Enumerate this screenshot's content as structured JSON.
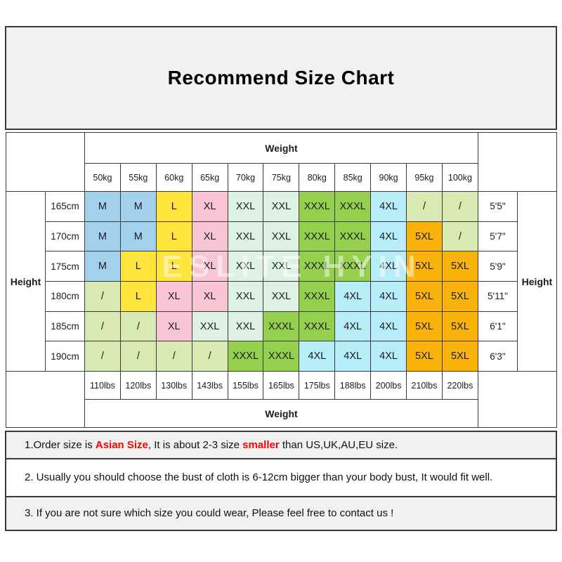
{
  "title": "Recommend Size Chart",
  "watermark": "ESLITE HYIN",
  "table": {
    "weight_label_top": "Weight",
    "weight_label_bottom": "Weight",
    "height_label_left": "Height",
    "height_label_right": "Height",
    "kg_columns": [
      "50kg",
      "55kg",
      "60kg",
      "65kg",
      "70kg",
      "75kg",
      "80kg",
      "85kg",
      "90kg",
      "95kg",
      "100kg"
    ],
    "lbs_columns": [
      "110lbs",
      "120lbs",
      "130lbs",
      "143lbs",
      "155lbs",
      "165lbs",
      "175lbs",
      "188lbs",
      "200lbs",
      "210lbs",
      "220lbs"
    ],
    "rows": [
      {
        "cm": "165cm",
        "sizes": [
          "M",
          "M",
          "L",
          "XL",
          "XXL",
          "XXL",
          "XXXL",
          "XXXL",
          "4XL",
          "/",
          "/"
        ],
        "ft": "5'5\""
      },
      {
        "cm": "170cm",
        "sizes": [
          "M",
          "M",
          "L",
          "XL",
          "XXL",
          "XXL",
          "XXXL",
          "XXXL",
          "4XL",
          "5XL",
          "/"
        ],
        "ft": "5'7\""
      },
      {
        "cm": "175cm",
        "sizes": [
          "M",
          "L",
          "L",
          "XL",
          "XXL",
          "XXL",
          "XXXL",
          "XXXL",
          "4XL",
          "5XL",
          "5XL"
        ],
        "ft": "5'9\""
      },
      {
        "cm": "180cm",
        "sizes": [
          "/",
          "L",
          "XL",
          "XL",
          "XXL",
          "XXL",
          "XXXL",
          "4XL",
          "4XL",
          "5XL",
          "5XL"
        ],
        "ft": "5'11\""
      },
      {
        "cm": "185cm",
        "sizes": [
          "/",
          "/",
          "XL",
          "XXL",
          "XXL",
          "XXXL",
          "XXXL",
          "4XL",
          "4XL",
          "5XL",
          "5XL"
        ],
        "ft": "6'1\""
      },
      {
        "cm": "190cm",
        "sizes": [
          "/",
          "/",
          "/",
          "/",
          "XXXL",
          "XXXL",
          "4XL",
          "4XL",
          "4XL",
          "5XL",
          "5XL"
        ],
        "ft": "6'3\""
      }
    ],
    "size_colors": {
      "M": "#a3d0ec",
      "L": "#ffe43c",
      "XL": "#f8c5d5",
      "XXL": "#def2e3",
      "XXXL": "#95cf4e",
      "4XL": "#b7edf8",
      "5XL": "#f9b30a",
      "/": "#d9e9b3"
    }
  },
  "notes": [
    {
      "parts": [
        {
          "text": "1.Order size is ",
          "red": false
        },
        {
          "text": "Asian Size",
          "red": true
        },
        {
          "text": ", It is about 2-3 size ",
          "red": false
        },
        {
          "text": "smaller",
          "red": true
        },
        {
          "text": " than US,UK,AU,EU size.",
          "red": false
        }
      ]
    },
    {
      "parts": [
        {
          "text": "2. Usually you should choose the bust of cloth is 6-12cm bigger than your body bust, It would fit well.",
          "red": false
        }
      ]
    },
    {
      "parts": [
        {
          "text": "3. If you are not sure which size you could wear, Please feel free to contact us !",
          "red": false
        }
      ]
    }
  ]
}
